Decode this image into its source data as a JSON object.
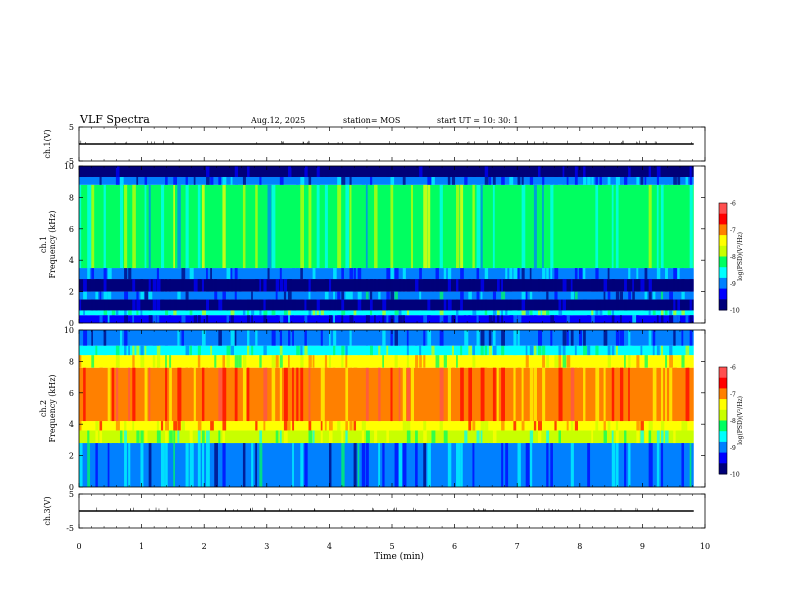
{
  "header": {
    "title": "VLF Spectra",
    "date": "Aug.12, 2025",
    "station": "station= MOS",
    "start": "start  UT =   10: 30: 1"
  },
  "colors": {
    "frame": "#000000",
    "background": "#ffffff",
    "spectro_scale": [
      "#00007a",
      "#0000ff",
      "#0080ff",
      "#00ffff",
      "#00ff60",
      "#c8ff00",
      "#ffff00",
      "#ff8000",
      "#ff0000",
      "#ff5050"
    ]
  },
  "chart_data": [
    {
      "type": "line",
      "name": "ch1-waveform",
      "ylabel": "ch.1(V)",
      "ylim": [
        -5,
        5
      ],
      "yticks": [
        "5",
        "-5"
      ],
      "xlim": [
        0,
        10
      ],
      "level": 0,
      "extent_min": [
        0,
        9.82
      ]
    },
    {
      "type": "heatmap",
      "name": "ch1-spectrogram",
      "ylabel": "ch.1\nFrequency (kHz)",
      "ylim": [
        0,
        10
      ],
      "yticks": [
        "0",
        "2",
        "4",
        "6",
        "8",
        "10"
      ],
      "xlim": [
        0,
        10
      ],
      "extent_min": [
        0,
        9.82
      ],
      "colorbar": {
        "label": "log(PSD)(V²/Hz)",
        "range": [
          -10,
          -6
        ],
        "ticks": [
          "-6",
          "-7",
          "-8",
          "-9",
          "-10"
        ]
      },
      "bands": [
        {
          "f": [
            0,
            0.5
          ],
          "level": -9.4
        },
        {
          "f": [
            0.5,
            0.8
          ],
          "level": -8.4
        },
        {
          "f": [
            0.8,
            1.5
          ],
          "level": -10
        },
        {
          "f": [
            1.5,
            2.0
          ],
          "level": -9.0
        },
        {
          "f": [
            2.0,
            2.8
          ],
          "level": -10
        },
        {
          "f": [
            2.8,
            3.5
          ],
          "level": -9.1
        },
        {
          "f": [
            3.5,
            8.8
          ],
          "level": -8.2
        },
        {
          "f": [
            8.8,
            9.3
          ],
          "level": -9.2
        },
        {
          "f": [
            9.3,
            10
          ],
          "level": -10
        }
      ]
    },
    {
      "type": "heatmap",
      "name": "ch2-spectrogram",
      "ylabel": "ch.2\nFrequency (kHz)",
      "ylim": [
        0,
        10
      ],
      "yticks": [
        "0",
        "2",
        "4",
        "6",
        "8",
        "10"
      ],
      "xlim": [
        0,
        10
      ],
      "extent_min": [
        0,
        9.82
      ],
      "colorbar": {
        "label": "log(PSD)(V²/Hz)",
        "range": [
          -10,
          -6
        ],
        "ticks": [
          "-6",
          "-7",
          "-8",
          "-9",
          "-10"
        ]
      },
      "bands": [
        {
          "f": [
            0,
            2.8
          ],
          "level": -9.0
        },
        {
          "f": [
            2.8,
            3.6
          ],
          "level": -8.0
        },
        {
          "f": [
            3.6,
            4.2
          ],
          "level": -7.3
        },
        {
          "f": [
            4.2,
            7.6
          ],
          "level": -6.9
        },
        {
          "f": [
            7.6,
            8.4
          ],
          "level": -7.6
        },
        {
          "f": [
            8.4,
            9.0
          ],
          "level": -8.4
        },
        {
          "f": [
            9.0,
            10
          ],
          "level": -9.2
        }
      ]
    },
    {
      "type": "line",
      "name": "ch3-waveform",
      "ylabel": "ch.3(V)",
      "ylim": [
        -5,
        5
      ],
      "yticks": [
        "5",
        "-5"
      ],
      "xlim": [
        0,
        10
      ],
      "level": 0,
      "extent_min": [
        0,
        9.82
      ]
    }
  ],
  "xaxis": {
    "label": "Time  (min)",
    "ticks": [
      "0",
      "1",
      "2",
      "3",
      "4",
      "5",
      "6",
      "7",
      "8",
      "9",
      "10"
    ]
  }
}
